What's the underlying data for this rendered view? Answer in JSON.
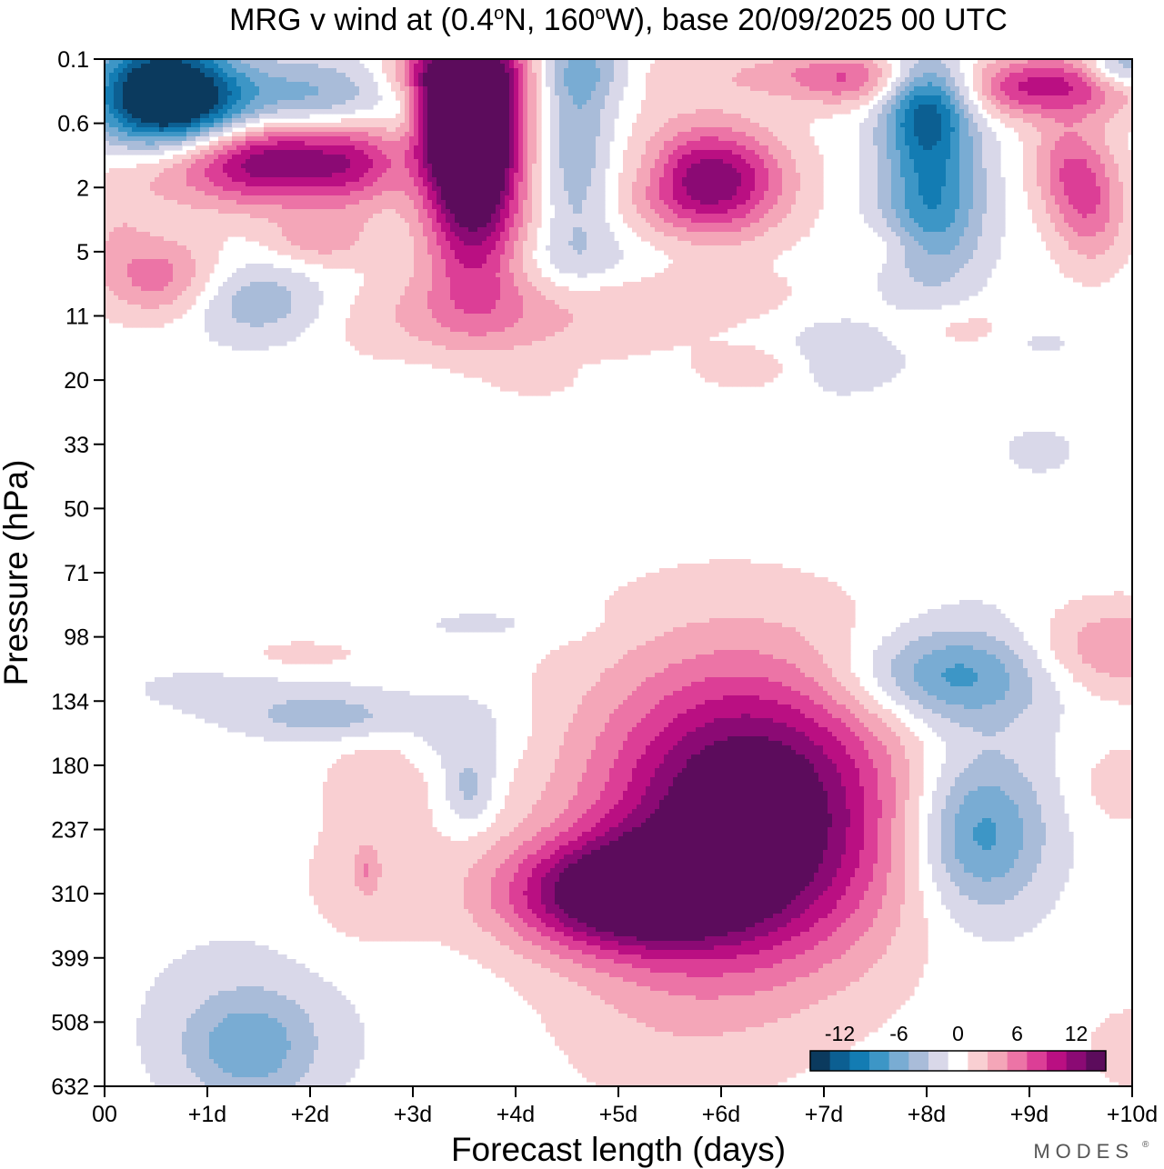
{
  "page": {
    "brand": "MODES",
    "brand_mark": "®"
  },
  "chart_data": {
    "type": "heatmap",
    "title": {
      "prefix": "MRG v wind at (0.4",
      "deg1": "o",
      "mid": "N, 160",
      "deg2": "o",
      "suffix": "W),  base 20/09/2025  00 UTC"
    },
    "xlabel": "Forecast length (days)",
    "ylabel": "Pressure (hPa)",
    "x_ticks": [
      "00",
      "+1d",
      "+2d",
      "+3d",
      "+4d",
      "+5d",
      "+6d",
      "+7d",
      "+8d",
      "+9d",
      "+10d"
    ],
    "x_range_days": [
      0,
      10
    ],
    "y_ticks": [
      "0.1",
      "0.6",
      "2",
      "5",
      "11",
      "20",
      "33",
      "50",
      "71",
      "98",
      "134",
      "180",
      "237",
      "310",
      "399",
      "508",
      "632"
    ],
    "levels": [
      -15,
      -13,
      -11,
      -9,
      -7,
      -5,
      -3,
      -1,
      1,
      3,
      5,
      7,
      9,
      11,
      13,
      15
    ],
    "colorbar_labels": [
      "-12",
      "-6",
      "0",
      "6",
      "12"
    ],
    "colorbar_label_values": [
      -12,
      -6,
      0,
      6,
      12
    ],
    "colorbar_colors": [
      "#0b3a5e",
      "#0c5f92",
      "#137cb3",
      "#3d96c6",
      "#79acd3",
      "#a9bcd9",
      "#d9d8e9",
      "#ffffff",
      "#f9cfd2",
      "#f4a6b8",
      "#ec74a6",
      "#dc3e96",
      "#ba0f82",
      "#8b0a74",
      "#5c0c5c"
    ],
    "features": [
      {
        "day": 0.55,
        "level": 0.6,
        "value": -16,
        "sx": 0.45,
        "sy": 0.75
      },
      {
        "day": 0.9,
        "level": 0.75,
        "value": -8,
        "sx": 0.55,
        "sy": 0.45
      },
      {
        "day": 2.1,
        "level": 0.65,
        "value": -6,
        "sx": 0.55,
        "sy": 0.45
      },
      {
        "day": 2.9,
        "level": 0.8,
        "value": -3,
        "sx": 0.15,
        "sy": 0.35
      },
      {
        "day": 0.6,
        "level": 1.5,
        "value": 7,
        "sx": 0.45,
        "sy": 0.55
      },
      {
        "day": 1.6,
        "level": 1.55,
        "value": 13,
        "sx": 0.55,
        "sy": 0.5
      },
      {
        "day": 2.45,
        "level": 1.6,
        "value": 7,
        "sx": 0.35,
        "sy": 0.5
      },
      {
        "day": 0.1,
        "level": 2.6,
        "value": 2,
        "sx": 0.25,
        "sy": 0.6
      },
      {
        "day": 3.5,
        "level": 0.45,
        "value": 17,
        "sx": 0.38,
        "sy": 0.7
      },
      {
        "day": 3.55,
        "level": 1.4,
        "value": 14,
        "sx": 0.3,
        "sy": 0.6
      },
      {
        "day": 3.6,
        "level": 2.5,
        "value": 12,
        "sx": 0.35,
        "sy": 0.9
      },
      {
        "day": 3.6,
        "level": 0.2,
        "value": 5,
        "sx": 0.5,
        "sy": 0.35
      },
      {
        "day": 4.7,
        "level": 0.2,
        "value": -5,
        "sx": 0.45,
        "sy": 0.35
      },
      {
        "day": 4.6,
        "level": 1.3,
        "value": -5,
        "sx": 0.25,
        "sy": 1.2
      },
      {
        "day": 5.3,
        "level": 0.25,
        "value": 3,
        "sx": 0.5,
        "sy": 0.35
      },
      {
        "day": 5.3,
        "level": 1.7,
        "value": -1.5,
        "sx": 0.2,
        "sy": 0.3
      },
      {
        "day": 5.9,
        "level": 1.9,
        "value": 13,
        "sx": 0.5,
        "sy": 0.6
      },
      {
        "day": 6.6,
        "level": 0.25,
        "value": 3,
        "sx": 0.5,
        "sy": 0.3
      },
      {
        "day": 7.3,
        "level": 0.3,
        "value": 6,
        "sx": 0.4,
        "sy": 0.3
      },
      {
        "day": 8.0,
        "level": 0.75,
        "value": -10,
        "sx": 0.3,
        "sy": 0.55
      },
      {
        "day": 8.05,
        "level": 2.2,
        "value": -9,
        "sx": 0.35,
        "sy": 0.9
      },
      {
        "day": 9.3,
        "level": 0.4,
        "value": 9,
        "sx": 0.6,
        "sy": 0.35
      },
      {
        "day": 9.9,
        "level": 0.15,
        "value": -7,
        "sx": 0.25,
        "sy": 0.25
      },
      {
        "day": 8.8,
        "level": 0.5,
        "value": 2,
        "sx": 0.3,
        "sy": 0.3
      },
      {
        "day": 9.35,
        "level": 1.65,
        "value": 5,
        "sx": 0.25,
        "sy": 0.55
      },
      {
        "day": 9.6,
        "level": 2.3,
        "value": 6,
        "sx": 0.25,
        "sy": 0.65
      },
      {
        "day": 0.55,
        "level": 3.4,
        "value": 6,
        "sx": 0.4,
        "sy": 0.45
      },
      {
        "day": 1.5,
        "level": 3.8,
        "value": -5,
        "sx": 0.5,
        "sy": 0.45
      },
      {
        "day": 2.1,
        "level": 2.8,
        "value": 4,
        "sx": 0.35,
        "sy": 0.3
      },
      {
        "day": 3.8,
        "level": 4.0,
        "value": 4,
        "sx": 1.2,
        "sy": 0.5
      },
      {
        "day": 6.0,
        "level": 3.7,
        "value": 2,
        "sx": 0.6,
        "sy": 0.3
      },
      {
        "day": 7.6,
        "level": 2.9,
        "value": 2,
        "sx": 0.35,
        "sy": 0.25
      },
      {
        "day": 4.5,
        "level": 3.1,
        "value": -2,
        "sx": 0.7,
        "sy": 0.35
      },
      {
        "day": 7.1,
        "level": 4.6,
        "value": -2.2,
        "sx": 0.55,
        "sy": 0.5
      },
      {
        "day": 8.3,
        "level": 4.2,
        "value": 2,
        "sx": 0.45,
        "sy": 0.25
      },
      {
        "day": 6.3,
        "level": 4.8,
        "value": 3,
        "sx": 0.35,
        "sy": 0.25
      },
      {
        "day": 4.2,
        "level": 5.0,
        "value": 1.8,
        "sx": 0.25,
        "sy": 0.18
      },
      {
        "day": 3.0,
        "level": 5.0,
        "value": -1.5,
        "sx": 0.2,
        "sy": 0.15
      },
      {
        "day": 9.1,
        "level": 4.4,
        "value": -1.5,
        "sx": 0.3,
        "sy": 0.2
      },
      {
        "day": 9.1,
        "level": 6.1,
        "value": -2,
        "sx": 0.25,
        "sy": 0.25
      },
      {
        "day": 3.8,
        "level": 8.8,
        "value": -1.5,
        "sx": 0.7,
        "sy": 0.22
      },
      {
        "day": 1.9,
        "level": 9.3,
        "value": 2,
        "sx": 0.55,
        "sy": 0.22
      },
      {
        "day": 1.3,
        "level": 9.8,
        "value": -1.5,
        "sx": 1.0,
        "sy": 0.4
      },
      {
        "day": 2.2,
        "level": 10.25,
        "value": -4,
        "sx": 0.55,
        "sy": 0.25
      },
      {
        "day": 3.5,
        "level": 10.5,
        "value": -2.5,
        "sx": 0.4,
        "sy": 0.45
      },
      {
        "day": 3.55,
        "level": 11.4,
        "value": -4,
        "sx": 0.18,
        "sy": 0.4
      },
      {
        "day": 2.7,
        "level": 11.2,
        "value": 2.2,
        "sx": 0.4,
        "sy": 0.6
      },
      {
        "day": 2.5,
        "level": 13.0,
        "value": 2.3,
        "sx": 0.5,
        "sy": 0.8
      },
      {
        "day": 2.55,
        "level": 12.6,
        "value": 3.2,
        "sx": 0.08,
        "sy": 0.25
      },
      {
        "day": 6.35,
        "level": 11.8,
        "value": 16,
        "sx": 1.0,
        "sy": 1.6
      },
      {
        "day": 5.0,
        "level": 13.0,
        "value": 14,
        "sx": 0.8,
        "sy": 0.6
      },
      {
        "day": 5.5,
        "level": 11.5,
        "value": 2,
        "sx": 1.0,
        "sy": 2.0
      },
      {
        "day": 5.4,
        "level": 14.8,
        "value": 1.5,
        "sx": 0.8,
        "sy": 1.3
      },
      {
        "day": 8.2,
        "level": 9.6,
        "value": -7,
        "sx": 0.7,
        "sy": 0.5
      },
      {
        "day": 8.5,
        "level": 12.1,
        "value": -7,
        "sx": 0.45,
        "sy": 0.8
      },
      {
        "day": 8.5,
        "level": 11.0,
        "value": -2,
        "sx": 0.55,
        "sy": 2.0
      },
      {
        "day": 9.8,
        "level": 9.2,
        "value": 5,
        "sx": 0.6,
        "sy": 0.5
      },
      {
        "day": 9.9,
        "level": 11.3,
        "value": 2,
        "sx": 0.35,
        "sy": 0.5
      },
      {
        "day": 10.0,
        "level": 15.4,
        "value": 2,
        "sx": 0.35,
        "sy": 0.5
      },
      {
        "day": 1.4,
        "level": 15.4,
        "value": -5.5,
        "sx": 0.45,
        "sy": 0.6
      },
      {
        "day": 1.5,
        "level": 14.8,
        "value": -1.5,
        "sx": 1.0,
        "sy": 1.2
      }
    ]
  }
}
